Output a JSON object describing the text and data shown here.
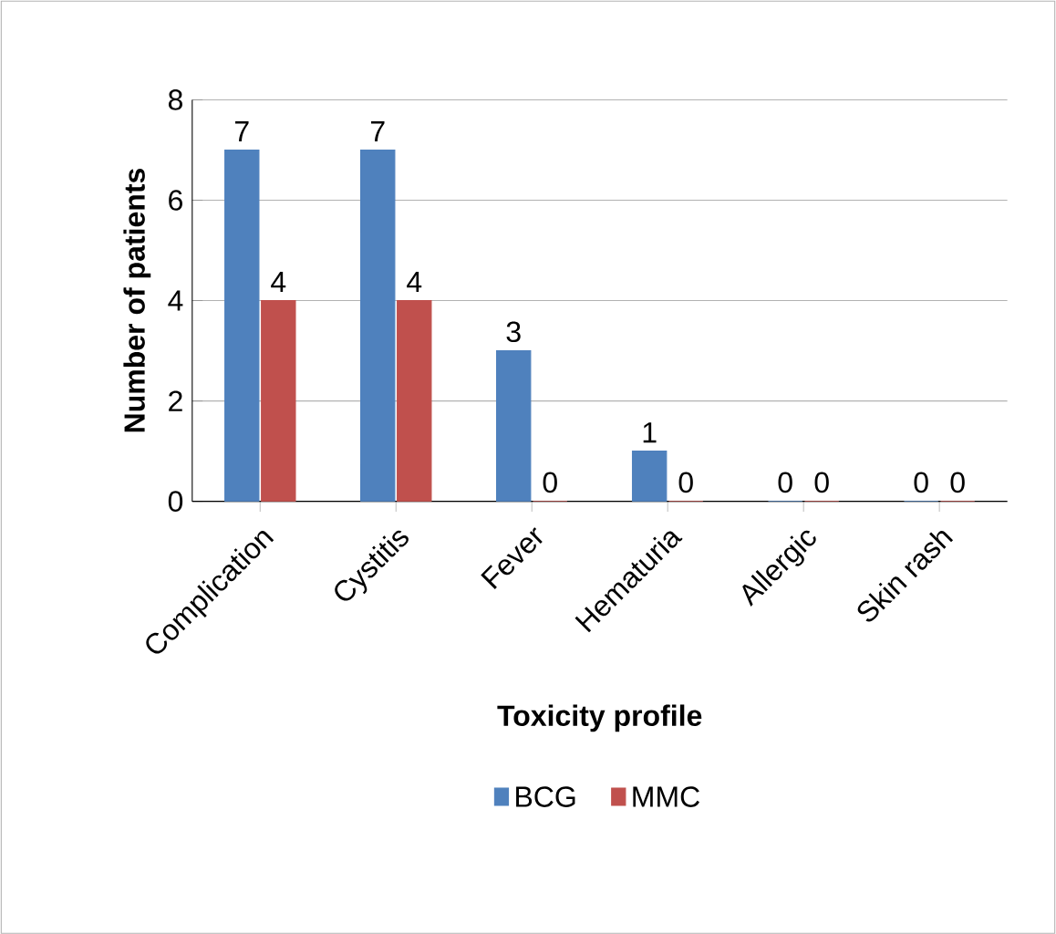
{
  "chart_data": {
    "type": "bar",
    "xlabel": "Toxicity profile",
    "ylabel": "Number of patients",
    "categories": [
      "Complication",
      "Cystitis",
      "Fever",
      "Hematuria",
      "Allergic",
      "Skin rash"
    ],
    "series": [
      {
        "name": "BCG",
        "color": "#4f81bd",
        "values": [
          7,
          7,
          3,
          1,
          0,
          0
        ]
      },
      {
        "name": "MMC",
        "color": "#c0504d",
        "values": [
          4,
          4,
          0,
          0,
          0,
          0
        ]
      }
    ],
    "ylim": [
      0,
      8
    ],
    "yticks": [
      0,
      2,
      4,
      6,
      8
    ],
    "grid": "y",
    "legend": "bottom",
    "data_labels": true
  }
}
